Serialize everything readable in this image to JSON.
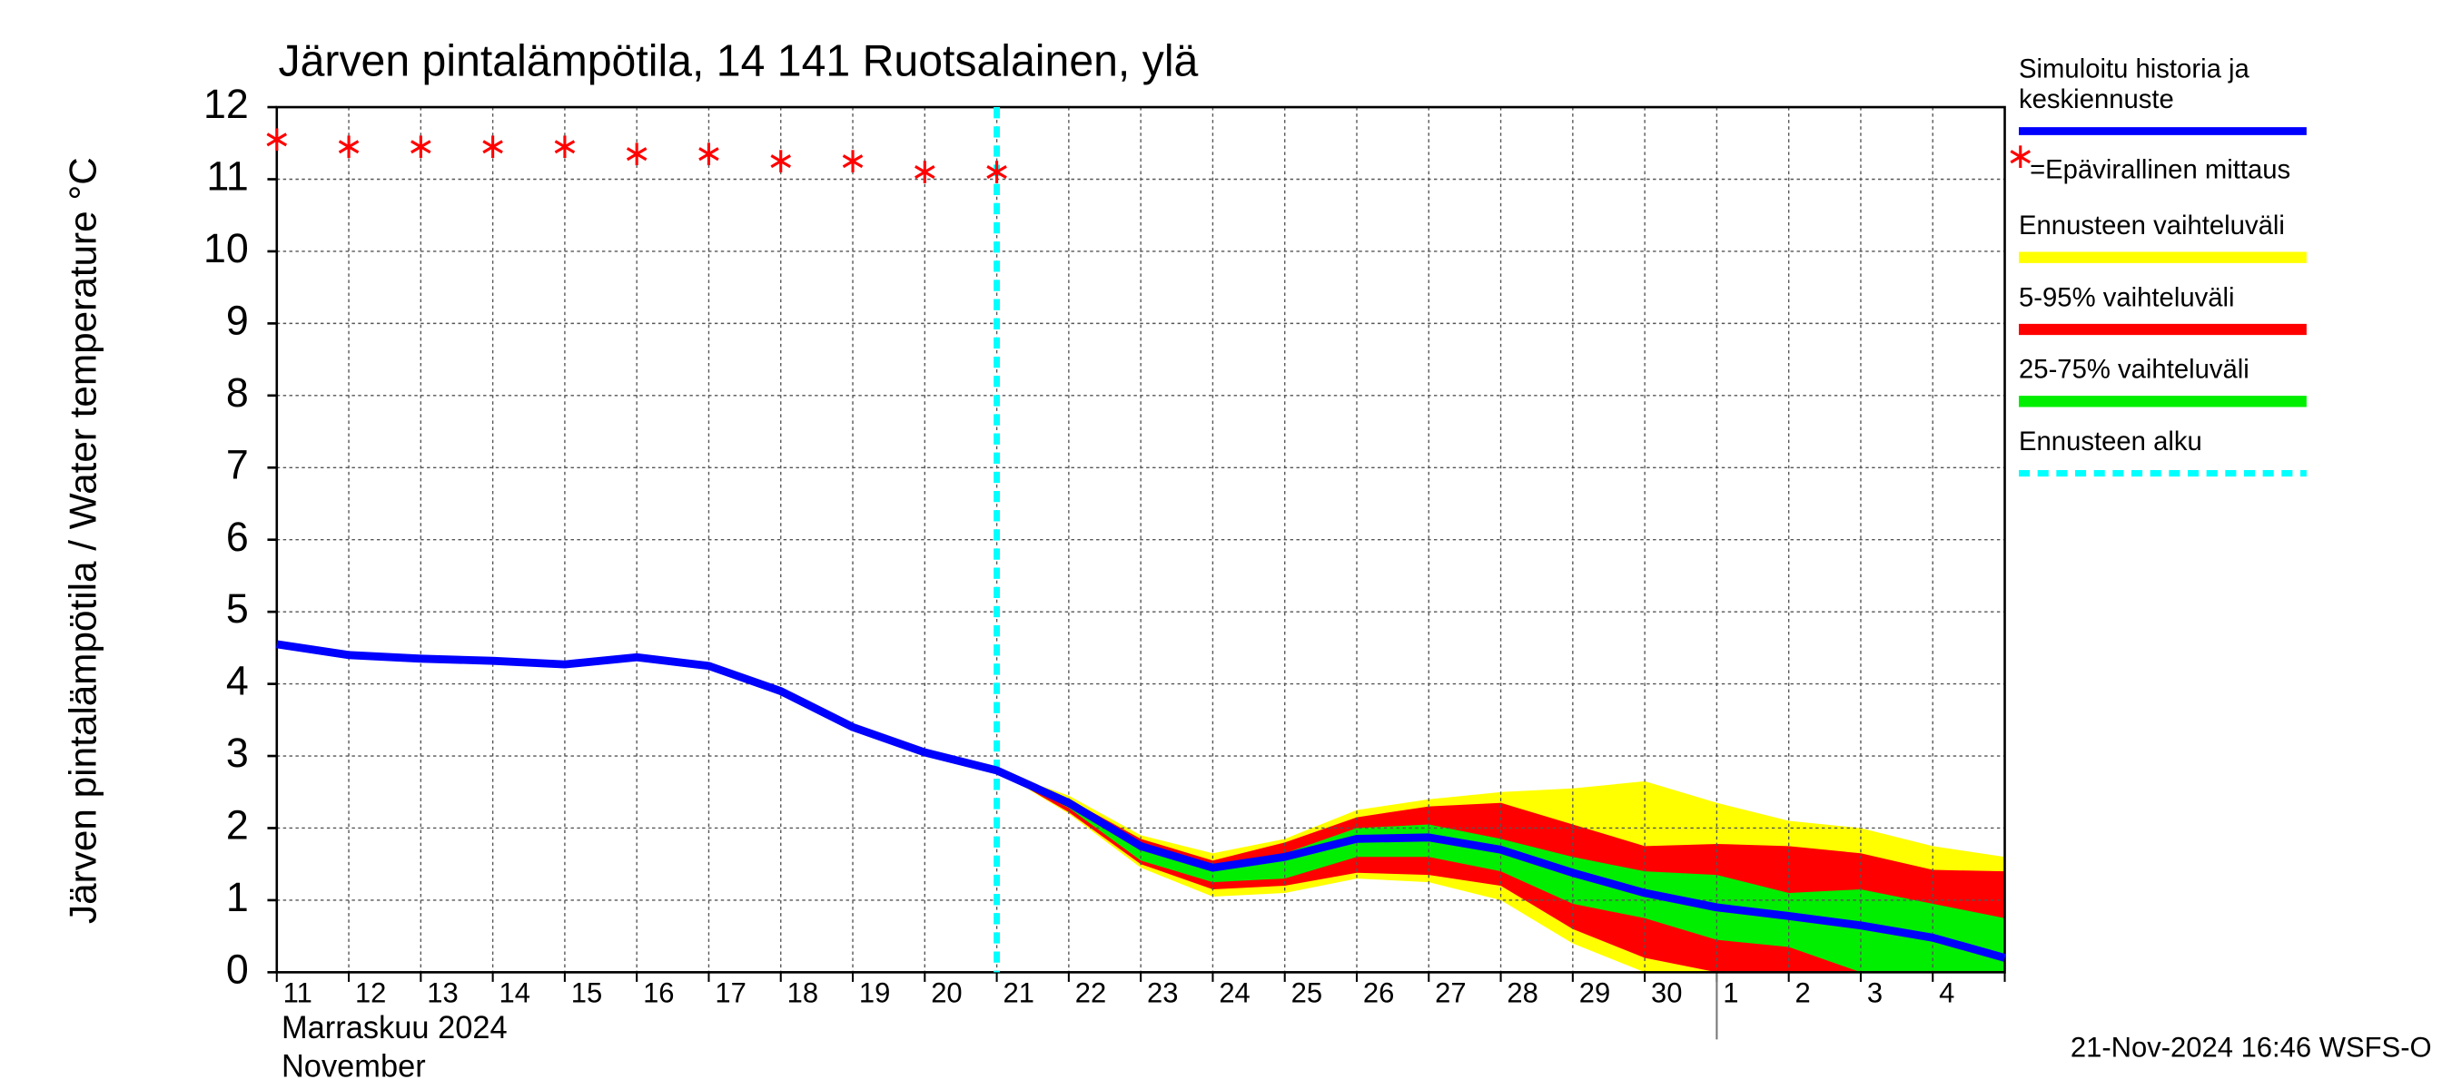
{
  "chart_data": {
    "type": "line",
    "title": "Järven pintalämpötila, 14 141 Ruotsalainen, ylä",
    "y_label": "Järven pintalämpötila / Water temperature °C",
    "x_label_lines": [
      "Marraskuu 2024",
      "November"
    ],
    "timestamp": "21-Nov-2024 16:46 WSFS-O",
    "categories": [
      "11",
      "12",
      "13",
      "14",
      "15",
      "16",
      "17",
      "18",
      "19",
      "20",
      "21",
      "22",
      "23",
      "24",
      "25",
      "26",
      "27",
      "28",
      "29",
      "30",
      "1",
      "2",
      "3",
      "4",
      null
    ],
    "month_start_index": 20,
    "ylim": [
      0,
      12
    ],
    "yticks": [
      0,
      1,
      2,
      3,
      4,
      5,
      6,
      7,
      8,
      9,
      10,
      11,
      12
    ],
    "grid": true,
    "bands": [
      {
        "name": "Ennusteen vaihteluväli",
        "color": "#ffff00",
        "high": [
          null,
          null,
          null,
          null,
          null,
          null,
          null,
          null,
          null,
          null,
          2.8,
          2.45,
          1.9,
          1.65,
          1.85,
          2.25,
          2.4,
          2.5,
          2.55,
          2.65,
          2.35,
          2.1,
          2.0,
          1.75,
          1.6
        ],
        "low": [
          null,
          null,
          null,
          null,
          null,
          null,
          null,
          null,
          null,
          null,
          2.8,
          2.2,
          1.45,
          1.05,
          1.1,
          1.3,
          1.25,
          1.0,
          0.4,
          0,
          0,
          0,
          0,
          0,
          0
        ]
      },
      {
        "name": "5-95% vaihteluväli",
        "color": "#ff0000",
        "high": [
          null,
          null,
          null,
          null,
          null,
          null,
          null,
          null,
          null,
          null,
          2.8,
          2.4,
          1.85,
          1.55,
          1.8,
          2.15,
          2.3,
          2.35,
          2.05,
          1.75,
          1.78,
          1.75,
          1.65,
          1.42,
          1.4
        ],
        "low": [
          null,
          null,
          null,
          null,
          null,
          null,
          null,
          null,
          null,
          null,
          2.8,
          2.22,
          1.5,
          1.15,
          1.2,
          1.38,
          1.35,
          1.2,
          0.6,
          0.2,
          0,
          0,
          0,
          0,
          0
        ]
      },
      {
        "name": "25-75% vaihteluväli",
        "color": "#00ee00",
        "high": [
          null,
          null,
          null,
          null,
          null,
          null,
          null,
          null,
          null,
          null,
          2.8,
          2.35,
          1.78,
          1.45,
          1.65,
          2.0,
          2.05,
          1.85,
          1.6,
          1.4,
          1.35,
          1.1,
          1.15,
          0.95,
          0.75
        ],
        "low": [
          null,
          null,
          null,
          null,
          null,
          null,
          null,
          null,
          null,
          null,
          2.8,
          2.28,
          1.55,
          1.25,
          1.3,
          1.6,
          1.6,
          1.4,
          0.95,
          0.75,
          0.45,
          0.35,
          0,
          0,
          0
        ]
      }
    ],
    "series": [
      {
        "name": "Simuloitu historia ja\nkeskiennuste",
        "color": "#0000ff",
        "values": [
          4.55,
          4.4,
          4.35,
          4.32,
          4.27,
          4.37,
          4.25,
          3.9,
          3.4,
          3.05,
          2.8,
          2.35,
          1.75,
          1.45,
          1.6,
          1.85,
          1.87,
          1.7,
          1.38,
          1.1,
          0.9,
          0.78,
          0.65,
          0.48,
          0.2
        ]
      },
      {
        "name": "=Epävirallinen mittaus",
        "color": "#ff0000",
        "marker": "asterisk",
        "values": [
          11.55,
          11.45,
          11.45,
          11.45,
          11.45,
          11.35,
          11.35,
          11.25,
          11.25,
          11.1,
          11.1,
          null,
          null,
          null,
          null,
          null,
          null,
          null,
          null,
          null,
          null,
          null,
          null,
          null,
          null
        ]
      }
    ],
    "forecast_start": {
      "name": "Ennusteen alku",
      "color": "#00ffff",
      "index": 10
    }
  }
}
